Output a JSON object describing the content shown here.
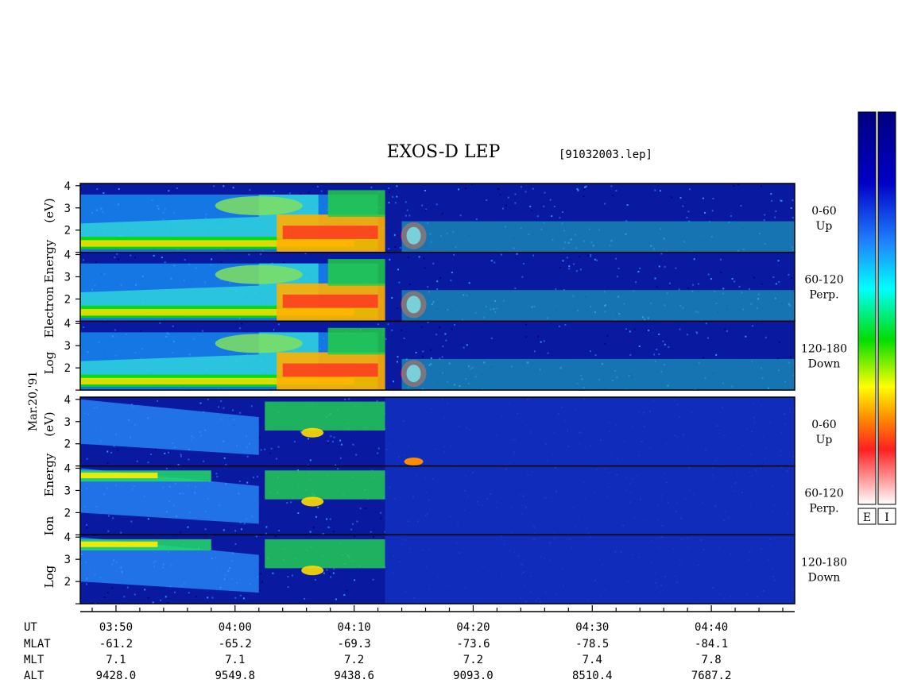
{
  "title": "EXOS-D LEP",
  "file_label": "[91032003.lep]",
  "date_label": "Mar.20,'91",
  "colorbar_labels": [
    "E",
    "I"
  ],
  "colors": {
    "background": "#0a1aa0",
    "scale": [
      "#ffffff",
      "#ff2020",
      "#ff8c00",
      "#ffff00",
      "#00dd00",
      "#00ffff",
      "#2080ff",
      "#0000c8",
      "#000080"
    ]
  },
  "chart_data": {
    "type": "heatmap",
    "x_axis": {
      "label": "UT",
      "tick_labels": [
        "03:50",
        "04:00",
        "04:10",
        "04:20",
        "04:30",
        "04:40"
      ],
      "range_minutes": [
        -3,
        57
      ]
    },
    "y_axis": {
      "ticks": [
        "4",
        "3",
        "2"
      ],
      "range": [
        1,
        4.1
      ]
    },
    "groups": [
      {
        "name": "electron",
        "ylabel": [
          "Log",
          "Electron",
          "Energy",
          "(eV)"
        ],
        "panels": [
          {
            "angle": "0-60",
            "dir": "Up"
          },
          {
            "angle": "60-120",
            "dir": "Perp."
          },
          {
            "angle": "120-180",
            "dir": "Down"
          }
        ]
      },
      {
        "name": "ion",
        "ylabel": [
          "Log",
          "Ion",
          "Energy",
          "(eV)"
        ],
        "panels": [
          {
            "angle": "0-60",
            "dir": "Up"
          },
          {
            "angle": "60-120",
            "dir": "Perp."
          },
          {
            "angle": "120-180",
            "dir": "Down"
          }
        ]
      }
    ],
    "orbit_table": {
      "row_labels": [
        "UT",
        "MLAT",
        "MLT",
        "ALT"
      ],
      "columns": [
        {
          "ut": "03:50",
          "mlat": "-61.2",
          "mlt": "7.1",
          "alt": "9428.0"
        },
        {
          "ut": "04:00",
          "mlat": "-65.2",
          "mlt": "7.1",
          "alt": "9549.8"
        },
        {
          "ut": "04:10",
          "mlat": "-69.3",
          "mlt": "7.2",
          "alt": "9438.6"
        },
        {
          "ut": "04:20",
          "mlat": "-73.6",
          "mlt": "7.2",
          "alt": "9093.0"
        },
        {
          "ut": "04:30",
          "mlat": "-78.5",
          "mlt": "7.4",
          "alt": "8510.4"
        },
        {
          "ut": "04:40",
          "mlat": "-84.1",
          "mlt": "7.8",
          "alt": "7687.2"
        }
      ]
    }
  }
}
